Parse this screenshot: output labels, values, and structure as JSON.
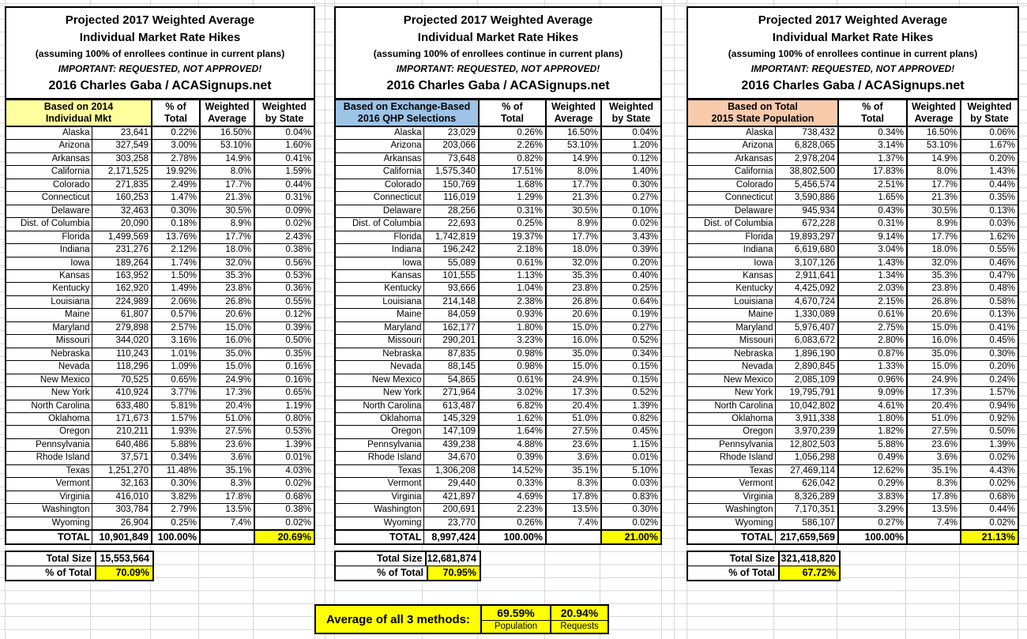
{
  "title": {
    "line1": "Projected 2017 Weighted Average",
    "line2": "Individual Market Rate Hikes",
    "line3": "(assuming 100% of enrollees continue in current plans)",
    "line4": "IMPORTANT: REQUESTED, NOT APPROVED!",
    "line5": "2016 Charles Gaba / ACASignups.net"
  },
  "columns": {
    "pct": [
      "% of",
      "Total"
    ],
    "avg": [
      "Weighted",
      "Average"
    ],
    "by_state": [
      "Weighted",
      "by State"
    ]
  },
  "states": [
    "Alaska",
    "Arizona",
    "Arkansas",
    "California",
    "Colorado",
    "Connecticut",
    "Delaware",
    "Dist. of Columbia",
    "Florida",
    "Indiana",
    "Iowa",
    "Kansas",
    "Kentucky",
    "Louisiana",
    "Maine",
    "Maryland",
    "Missouri",
    "Nebraska",
    "Nevada",
    "New Mexico",
    "New York",
    "North Carolina",
    "Oklahoma",
    "Oregon",
    "Pennsylvania",
    "Rhode Island",
    "Texas",
    "Vermont",
    "Virginia",
    "Washington",
    "Wyoming"
  ],
  "colors": {
    "highlight_yellow": "#FFFF00"
  },
  "tables": [
    {
      "basis": [
        "Based on 2014",
        "Individual Mkt"
      ],
      "basis_color": "#FFFF9E",
      "rows": [
        [
          "23,641",
          "0.22%",
          "16.50%",
          "0.04%"
        ],
        [
          "327,549",
          "3.00%",
          "53.10%",
          "1.60%"
        ],
        [
          "303,258",
          "2.78%",
          "14.9%",
          "0.41%"
        ],
        [
          "2,171,525",
          "19.92%",
          "8.0%",
          "1.59%"
        ],
        [
          "271,835",
          "2.49%",
          "17.7%",
          "0.44%"
        ],
        [
          "160,253",
          "1.47%",
          "21.3%",
          "0.31%"
        ],
        [
          "32,463",
          "0.30%",
          "30.5%",
          "0.09%"
        ],
        [
          "20,090",
          "0.18%",
          "8.9%",
          "0.02%"
        ],
        [
          "1,499,569",
          "13.76%",
          "17.7%",
          "2.43%"
        ],
        [
          "231,276",
          "2.12%",
          "18.0%",
          "0.38%"
        ],
        [
          "189,264",
          "1.74%",
          "32.0%",
          "0.56%"
        ],
        [
          "163,952",
          "1.50%",
          "35.3%",
          "0.53%"
        ],
        [
          "162,920",
          "1.49%",
          "23.8%",
          "0.36%"
        ],
        [
          "224,989",
          "2.06%",
          "26.8%",
          "0.55%"
        ],
        [
          "61,807",
          "0.57%",
          "20.6%",
          "0.12%"
        ],
        [
          "279,898",
          "2.57%",
          "15.0%",
          "0.39%"
        ],
        [
          "344,020",
          "3.16%",
          "16.0%",
          "0.50%"
        ],
        [
          "110,243",
          "1.01%",
          "35.0%",
          "0.35%"
        ],
        [
          "118,296",
          "1.09%",
          "15.0%",
          "0.16%"
        ],
        [
          "70,525",
          "0.65%",
          "24.9%",
          "0.16%"
        ],
        [
          "410,924",
          "3.77%",
          "17.3%",
          "0.65%"
        ],
        [
          "633,480",
          "5.81%",
          "20.4%",
          "1.19%"
        ],
        [
          "171,673",
          "1.57%",
          "51.0%",
          "0.80%"
        ],
        [
          "210,211",
          "1.93%",
          "27.5%",
          "0.53%"
        ],
        [
          "640,486",
          "5.88%",
          "23.6%",
          "1.39%"
        ],
        [
          "37,571",
          "0.34%",
          "3.6%",
          "0.01%"
        ],
        [
          "1,251,270",
          "11.48%",
          "35.1%",
          "4.03%"
        ],
        [
          "32,163",
          "0.30%",
          "8.3%",
          "0.02%"
        ],
        [
          "416,010",
          "3.82%",
          "17.8%",
          "0.68%"
        ],
        [
          "303,784",
          "2.79%",
          "13.5%",
          "0.38%"
        ],
        [
          "26,904",
          "0.25%",
          "7.4%",
          "0.02%"
        ]
      ],
      "total": {
        "label": "TOTAL",
        "value": "10,901,849",
        "pct": "100.00%",
        "by_state": "20.69%"
      },
      "summary": {
        "size_label": "Total Size",
        "size_value": "15,553,564",
        "pct_label": "% of Total",
        "pct_value": "70.09%"
      }
    },
    {
      "basis": [
        "Based on Exchange-Based",
        "2016 QHP Selections"
      ],
      "basis_color": "#9DC3E6",
      "rows": [
        [
          "23,029",
          "0.26%",
          "16.50%",
          "0.04%"
        ],
        [
          "203,066",
          "2.26%",
          "53.10%",
          "1.20%"
        ],
        [
          "73,648",
          "0.82%",
          "14.9%",
          "0.12%"
        ],
        [
          "1,575,340",
          "17.51%",
          "8.0%",
          "1.40%"
        ],
        [
          "150,769",
          "1.68%",
          "17.7%",
          "0.30%"
        ],
        [
          "116,019",
          "1.29%",
          "21.3%",
          "0.27%"
        ],
        [
          "28,256",
          "0.31%",
          "30.5%",
          "0.10%"
        ],
        [
          "22,693",
          "0.25%",
          "8.9%",
          "0.02%"
        ],
        [
          "1,742,819",
          "19.37%",
          "17.7%",
          "3.43%"
        ],
        [
          "196,242",
          "2.18%",
          "18.0%",
          "0.39%"
        ],
        [
          "55,089",
          "0.61%",
          "32.0%",
          "0.20%"
        ],
        [
          "101,555",
          "1.13%",
          "35.3%",
          "0.40%"
        ],
        [
          "93,666",
          "1.04%",
          "23.8%",
          "0.25%"
        ],
        [
          "214,148",
          "2.38%",
          "26.8%",
          "0.64%"
        ],
        [
          "84,059",
          "0.93%",
          "20.6%",
          "0.19%"
        ],
        [
          "162,177",
          "1.80%",
          "15.0%",
          "0.27%"
        ],
        [
          "290,201",
          "3.23%",
          "16.0%",
          "0.52%"
        ],
        [
          "87,835",
          "0.98%",
          "35.0%",
          "0.34%"
        ],
        [
          "88,145",
          "0.98%",
          "15.0%",
          "0.15%"
        ],
        [
          "54,865",
          "0.61%",
          "24.9%",
          "0.15%"
        ],
        [
          "271,964",
          "3.02%",
          "17.3%",
          "0.52%"
        ],
        [
          "613,487",
          "6.82%",
          "20.4%",
          "1.39%"
        ],
        [
          "145,329",
          "1.62%",
          "51.0%",
          "0.82%"
        ],
        [
          "147,109",
          "1.64%",
          "27.5%",
          "0.45%"
        ],
        [
          "439,238",
          "4.88%",
          "23.6%",
          "1.15%"
        ],
        [
          "34,670",
          "0.39%",
          "3.6%",
          "0.01%"
        ],
        [
          "1,306,208",
          "14.52%",
          "35.1%",
          "5.10%"
        ],
        [
          "29,440",
          "0.33%",
          "8.3%",
          "0.03%"
        ],
        [
          "421,897",
          "4.69%",
          "17.8%",
          "0.83%"
        ],
        [
          "200,691",
          "2.23%",
          "13.5%",
          "0.30%"
        ],
        [
          "23,770",
          "0.26%",
          "7.4%",
          "0.02%"
        ]
      ],
      "total": {
        "label": "TOTAL",
        "value": "8,997,424",
        "pct": "100.00%",
        "by_state": "21.00%"
      },
      "summary": {
        "size_label": "Total Size",
        "size_value": "12,681,874",
        "pct_label": "% of Total",
        "pct_value": "70.95%"
      }
    },
    {
      "basis": [
        "Based on Total",
        "2015 State Population"
      ],
      "basis_color": "#F8CBAD",
      "rows": [
        [
          "738,432",
          "0.34%",
          "16.50%",
          "0.06%"
        ],
        [
          "6,828,065",
          "3.14%",
          "53.10%",
          "1.67%"
        ],
        [
          "2,978,204",
          "1.37%",
          "14.9%",
          "0.20%"
        ],
        [
          "38,802,500",
          "17.83%",
          "8.0%",
          "1.43%"
        ],
        [
          "5,456,574",
          "2.51%",
          "17.7%",
          "0.44%"
        ],
        [
          "3,590,886",
          "1.65%",
          "21.3%",
          "0.35%"
        ],
        [
          "945,934",
          "0.43%",
          "30.5%",
          "0.13%"
        ],
        [
          "672,228",
          "0.31%",
          "8.9%",
          "0.03%"
        ],
        [
          "19,893,297",
          "9.14%",
          "17.7%",
          "1.62%"
        ],
        [
          "6,619,680",
          "3.04%",
          "18.0%",
          "0.55%"
        ],
        [
          "3,107,126",
          "1.43%",
          "32.0%",
          "0.46%"
        ],
        [
          "2,911,641",
          "1.34%",
          "35.3%",
          "0.47%"
        ],
        [
          "4,425,092",
          "2.03%",
          "23.8%",
          "0.48%"
        ],
        [
          "4,670,724",
          "2.15%",
          "26.8%",
          "0.58%"
        ],
        [
          "1,330,089",
          "0.61%",
          "20.6%",
          "0.13%"
        ],
        [
          "5,976,407",
          "2.75%",
          "15.0%",
          "0.41%"
        ],
        [
          "6,083,672",
          "2.80%",
          "16.0%",
          "0.45%"
        ],
        [
          "1,896,190",
          "0.87%",
          "35.0%",
          "0.30%"
        ],
        [
          "2,890,845",
          "1.33%",
          "15.0%",
          "0.20%"
        ],
        [
          "2,085,109",
          "0.96%",
          "24.9%",
          "0.24%"
        ],
        [
          "19,795,791",
          "9.09%",
          "17.3%",
          "1.57%"
        ],
        [
          "10,042,802",
          "4.61%",
          "20.4%",
          "0.94%"
        ],
        [
          "3,911,338",
          "1.80%",
          "51.0%",
          "0.92%"
        ],
        [
          "3,970,239",
          "1.82%",
          "27.5%",
          "0.50%"
        ],
        [
          "12,802,503",
          "5.88%",
          "23.6%",
          "1.39%"
        ],
        [
          "1,056,298",
          "0.49%",
          "3.6%",
          "0.02%"
        ],
        [
          "27,469,114",
          "12.62%",
          "35.1%",
          "4.43%"
        ],
        [
          "626,042",
          "0.29%",
          "8.3%",
          "0.02%"
        ],
        [
          "8,326,289",
          "3.83%",
          "17.8%",
          "0.68%"
        ],
        [
          "7,170,351",
          "3.29%",
          "13.5%",
          "0.44%"
        ],
        [
          "586,107",
          "0.27%",
          "7.4%",
          "0.02%"
        ]
      ],
      "total": {
        "label": "TOTAL",
        "value": "217,659,569",
        "pct": "100.00%",
        "by_state": "21.13%"
      },
      "summary": {
        "size_label": "Total Size",
        "size_value": "321,418,820",
        "pct_label": "% of Total",
        "pct_value": "67.72%"
      }
    }
  ],
  "average": {
    "label": "Average of all 3 methods:",
    "population_pct": "69.59%",
    "population_label": "Population",
    "requests_pct": "20.94%",
    "requests_label": "Requests"
  }
}
